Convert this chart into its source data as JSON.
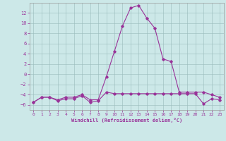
{
  "xlabel": "Windchill (Refroidissement éolien,°C)",
  "background_color": "#cce8e8",
  "grid_color": "#aacccc",
  "line_color": "#993399",
  "x_hours": [
    0,
    1,
    2,
    3,
    4,
    5,
    6,
    7,
    8,
    9,
    10,
    11,
    12,
    13,
    14,
    15,
    16,
    17,
    18,
    19,
    20,
    21,
    22,
    23
  ],
  "line1": [
    -5.5,
    -4.5,
    -4.5,
    -5.0,
    -4.5,
    -4.5,
    -4.0,
    -5.0,
    -5.0,
    -0.5,
    4.5,
    9.5,
    13.0,
    13.5,
    11.0,
    9.0,
    3.0,
    2.5,
    -3.5,
    -3.5,
    -3.5,
    -3.5,
    -4.0,
    -4.5
  ],
  "line2": [
    -5.5,
    -4.5,
    -4.5,
    -5.2,
    -4.8,
    -4.8,
    -4.2,
    -5.5,
    -5.2,
    -3.5,
    -3.8,
    -3.8,
    -3.8,
    -3.8,
    -3.8,
    -3.8,
    -3.8,
    -3.8,
    -3.8,
    -3.8,
    -3.8,
    -5.8,
    -4.8,
    -5.0
  ],
  "ylim": [
    -7,
    14
  ],
  "xlim": [
    -0.5,
    23.5
  ],
  "yticks": [
    -6,
    -4,
    -2,
    0,
    2,
    4,
    6,
    8,
    10,
    12
  ],
  "xticks": [
    0,
    1,
    2,
    3,
    4,
    5,
    6,
    7,
    8,
    9,
    10,
    11,
    12,
    13,
    14,
    15,
    16,
    17,
    18,
    19,
    20,
    21,
    22,
    23
  ]
}
